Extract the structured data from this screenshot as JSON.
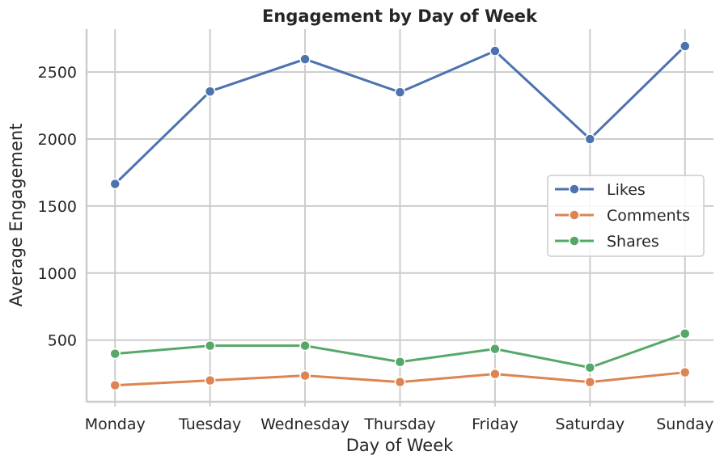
{
  "chart_data": {
    "type": "line",
    "title": "Engagement by Day of Week",
    "xlabel": "Day of Week",
    "ylabel": "Average Engagement",
    "categories": [
      "Monday",
      "Tuesday",
      "Wednesday",
      "Thursday",
      "Friday",
      "Saturday",
      "Sunday"
    ],
    "ylim": [
      40,
      2820
    ],
    "yticks": [
      500,
      1000,
      1500,
      2000,
      2500
    ],
    "grid": true,
    "legend_position": "center-right",
    "series": [
      {
        "name": "Likes",
        "color": "#4c72b0",
        "values": [
          1665,
          2355,
          2596,
          2349,
          2657,
          2000,
          2693
        ]
      },
      {
        "name": "Comments",
        "color": "#dd8452",
        "values": [
          163,
          199,
          235,
          187,
          247,
          187,
          259
        ]
      },
      {
        "name": "Shares",
        "color": "#55a868",
        "values": [
          398,
          458,
          458,
          337,
          434,
          295,
          548
        ]
      }
    ]
  }
}
